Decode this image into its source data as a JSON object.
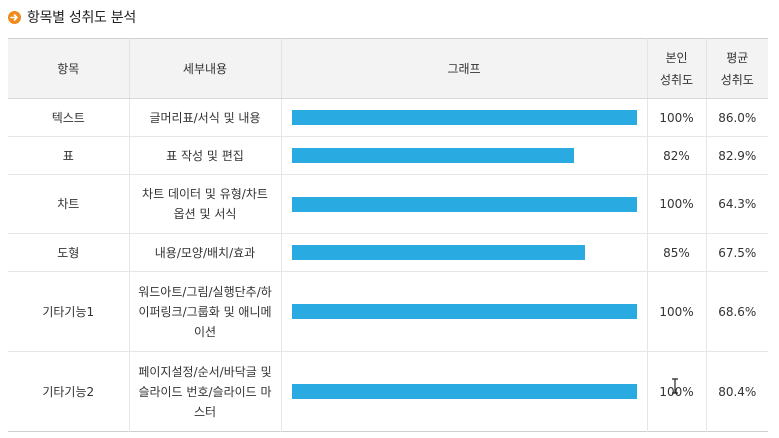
{
  "section": {
    "title": "항목별 성취도 분석",
    "icon": "arrow-right-circle-icon"
  },
  "colors": {
    "bar": "#29abe2",
    "icon": "#f08a1c",
    "header_bg": "#f3f3f3"
  },
  "table": {
    "headers": {
      "item": "항목",
      "detail": "세부내용",
      "graph": "그래프",
      "self_line1": "본인",
      "self_line2": "성취도",
      "avg_line1": "평균",
      "avg_line2": "성취도"
    },
    "rows": [
      {
        "item": "텍스트",
        "detail": "글머리표/서식 및 내용",
        "self": "100%",
        "avg": "86.0%",
        "self_value": 100
      },
      {
        "item": "표",
        "detail": "표 작성 및 편집",
        "self": "82%",
        "avg": "82.9%",
        "self_value": 82
      },
      {
        "item": "차트",
        "detail": "차트 데이터 및 유형/차트 옵션 및 서식",
        "self": "100%",
        "avg": "64.3%",
        "self_value": 100
      },
      {
        "item": "도형",
        "detail": "내용/모양/배치/효과",
        "self": "85%",
        "avg": "67.5%",
        "self_value": 85
      },
      {
        "item": "기타기능1",
        "detail": "워드아트/그림/실행단추/하이퍼링크/그룹화 및 애니메이션",
        "self": "100%",
        "avg": "68.6%",
        "self_value": 100
      },
      {
        "item": "기타기능2",
        "detail": "페이지설정/순서/바닥글 및 슬라이드 번호/슬라이드 마스터",
        "self": "100%",
        "avg": "80.4%",
        "self_value": 100
      }
    ]
  }
}
